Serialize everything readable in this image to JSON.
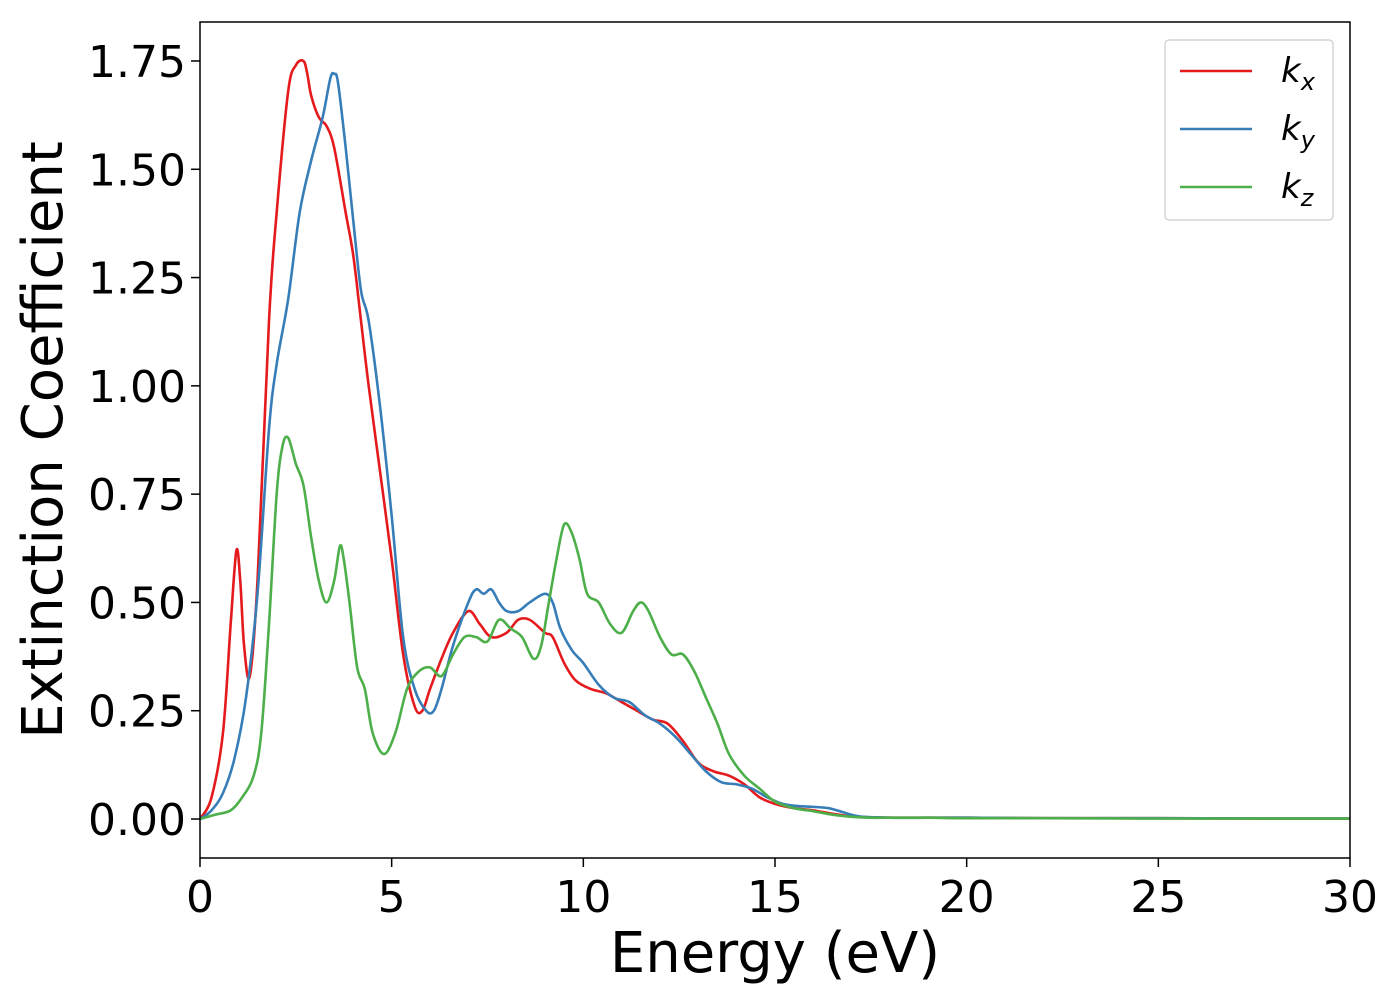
{
  "chart_data": {
    "type": "line",
    "xlabel": "Energy (eV)",
    "ylabel": "Extinction Coefficient",
    "xlim": [
      0,
      30
    ],
    "ylim": [
      -0.09,
      1.84
    ],
    "xticks": [
      0,
      5,
      10,
      15,
      20,
      25,
      30
    ],
    "xtick_labels": [
      "0",
      "5",
      "10",
      "15",
      "20",
      "25",
      "30"
    ],
    "yticks": [
      0,
      0.25,
      0.5,
      0.75,
      1.0,
      1.25,
      1.5,
      1.75
    ],
    "ytick_labels": [
      "0.00",
      "0.25",
      "0.50",
      "0.75",
      "1.00",
      "1.25",
      "1.50",
      "1.75"
    ],
    "grid": false,
    "legend_position": "top-right",
    "series": [
      {
        "name": "k",
        "subscript": "x",
        "color": "#e41a1c",
        "x": [
          0,
          0.3,
          0.6,
          0.8,
          0.95,
          1.05,
          1.15,
          1.3,
          1.5,
          1.8,
          2.0,
          2.3,
          2.5,
          2.7,
          2.8,
          2.9,
          3.1,
          3.3,
          3.5,
          3.8,
          4.0,
          4.2,
          4.4,
          4.7,
          5.0,
          5.3,
          5.6,
          5.8,
          6.0,
          6.3,
          6.6,
          7.0,
          7.3,
          7.6,
          8.0,
          8.3,
          8.6,
          9.0,
          9.2,
          9.5,
          9.8,
          10.2,
          10.6,
          11.0,
          11.4,
          11.8,
          12.2,
          12.6,
          13.0,
          13.4,
          13.8,
          14.2,
          14.6,
          15.0,
          15.5,
          16.0,
          16.5,
          17.0,
          17.5,
          18,
          19,
          20,
          22,
          25,
          28,
          30
        ],
        "y": [
          0.0,
          0.05,
          0.2,
          0.45,
          0.62,
          0.55,
          0.4,
          0.33,
          0.55,
          1.15,
          1.4,
          1.68,
          1.74,
          1.75,
          1.72,
          1.67,
          1.62,
          1.6,
          1.55,
          1.4,
          1.3,
          1.15,
          1.0,
          0.8,
          0.6,
          0.38,
          0.26,
          0.25,
          0.3,
          0.37,
          0.43,
          0.48,
          0.45,
          0.42,
          0.43,
          0.46,
          0.46,
          0.43,
          0.42,
          0.36,
          0.32,
          0.3,
          0.29,
          0.27,
          0.25,
          0.23,
          0.22,
          0.18,
          0.13,
          0.11,
          0.1,
          0.08,
          0.05,
          0.035,
          0.025,
          0.02,
          0.012,
          0.006,
          0.004,
          0.003,
          0.003,
          0.003,
          0.002,
          0.002,
          0.001,
          0.001
        ]
      },
      {
        "name": "k",
        "subscript": "y",
        "color": "#377eb8",
        "x": [
          0,
          0.3,
          0.6,
          0.9,
          1.2,
          1.5,
          1.8,
          2.0,
          2.3,
          2.6,
          2.9,
          3.2,
          3.4,
          3.5,
          3.6,
          3.8,
          4.0,
          4.2,
          4.4,
          4.7,
          5.0,
          5.3,
          5.6,
          5.9,
          6.1,
          6.3,
          6.6,
          7.0,
          7.2,
          7.4,
          7.6,
          7.8,
          8.0,
          8.3,
          8.6,
          9.0,
          9.2,
          9.4,
          9.7,
          10.0,
          10.4,
          10.8,
          11.2,
          11.6,
          12.0,
          12.4,
          12.8,
          13.2,
          13.6,
          14.0,
          14.4,
          14.8,
          15.2,
          15.6,
          16.0,
          16.4,
          16.8,
          17.2,
          18,
          19,
          20,
          22,
          25,
          28,
          30
        ],
        "y": [
          0.0,
          0.02,
          0.06,
          0.14,
          0.28,
          0.52,
          0.9,
          1.05,
          1.2,
          1.4,
          1.52,
          1.62,
          1.71,
          1.72,
          1.7,
          1.55,
          1.38,
          1.22,
          1.15,
          0.95,
          0.7,
          0.42,
          0.3,
          0.25,
          0.25,
          0.3,
          0.4,
          0.5,
          0.53,
          0.52,
          0.53,
          0.5,
          0.48,
          0.48,
          0.5,
          0.52,
          0.5,
          0.44,
          0.39,
          0.36,
          0.31,
          0.28,
          0.27,
          0.24,
          0.22,
          0.19,
          0.15,
          0.11,
          0.085,
          0.08,
          0.07,
          0.05,
          0.035,
          0.03,
          0.028,
          0.025,
          0.015,
          0.006,
          0.003,
          0.003,
          0.003,
          0.002,
          0.002,
          0.001,
          0.001
        ]
      },
      {
        "name": "k",
        "subscript": "z",
        "color": "#4daf4a",
        "x": [
          0,
          0.4,
          0.8,
          1.1,
          1.4,
          1.6,
          1.8,
          2.0,
          2.15,
          2.3,
          2.5,
          2.7,
          2.9,
          3.1,
          3.3,
          3.5,
          3.65,
          3.75,
          3.9,
          4.1,
          4.3,
          4.5,
          4.8,
          5.1,
          5.4,
          5.7,
          6.0,
          6.3,
          6.6,
          6.9,
          7.2,
          7.5,
          7.8,
          8.1,
          8.4,
          8.7,
          8.9,
          9.1,
          9.3,
          9.5,
          9.7,
          9.9,
          10.1,
          10.4,
          10.7,
          11.0,
          11.3,
          11.5,
          11.7,
          12.0,
          12.3,
          12.6,
          12.9,
          13.2,
          13.5,
          13.8,
          14.2,
          14.6,
          15.0,
          15.5,
          16.0,
          16.5,
          17.0,
          17.5,
          18,
          19,
          20,
          22,
          25,
          28,
          30
        ],
        "y": [
          0.0,
          0.01,
          0.02,
          0.05,
          0.1,
          0.2,
          0.45,
          0.75,
          0.86,
          0.88,
          0.82,
          0.77,
          0.65,
          0.55,
          0.5,
          0.55,
          0.63,
          0.6,
          0.5,
          0.35,
          0.3,
          0.2,
          0.15,
          0.2,
          0.3,
          0.34,
          0.35,
          0.33,
          0.38,
          0.42,
          0.42,
          0.41,
          0.46,
          0.44,
          0.42,
          0.37,
          0.4,
          0.5,
          0.6,
          0.68,
          0.66,
          0.6,
          0.52,
          0.5,
          0.45,
          0.43,
          0.48,
          0.5,
          0.48,
          0.42,
          0.38,
          0.38,
          0.34,
          0.28,
          0.22,
          0.15,
          0.1,
          0.07,
          0.04,
          0.025,
          0.018,
          0.01,
          0.005,
          0.003,
          0.003,
          0.003,
          0.002,
          0.002,
          0.001,
          0.001,
          0.001
        ]
      }
    ]
  }
}
